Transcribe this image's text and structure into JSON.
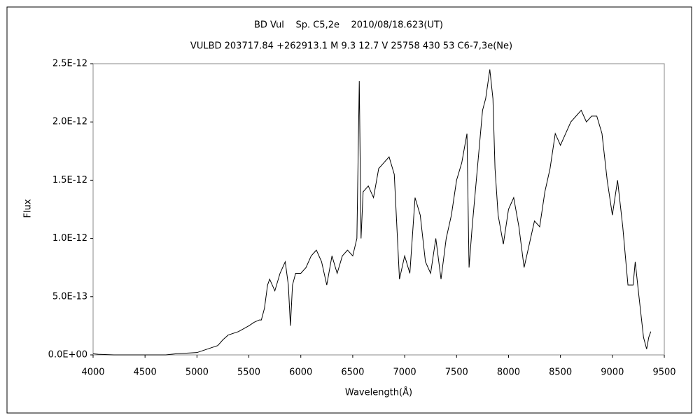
{
  "chart_data": {
    "type": "line",
    "title": "BD Vul    Sp. C5,2e    2010/08/18.623(UT)",
    "subtitle": "VULBD 203717.84 +262913.1 M 9.3 12.7 V 25758 430 53 C6-7,3e(Ne)",
    "x_label": "Wavelength(Å)",
    "y_label": "Flux",
    "color": "#000000",
    "x": [
      4000,
      4050,
      4200,
      4500,
      4700,
      4800,
      5000,
      5100,
      5200,
      5250,
      5300,
      5400,
      5500,
      5550,
      5600,
      5620,
      5650,
      5680,
      5700,
      5750,
      5800,
      5850,
      5880,
      5900,
      5920,
      5950,
      6000,
      6050,
      6100,
      6150,
      6200,
      6250,
      6300,
      6350,
      6400,
      6450,
      6500,
      6540,
      6563,
      6580,
      6600,
      6650,
      6700,
      6750,
      6800,
      6850,
      6900,
      6950,
      7000,
      7050,
      7100,
      7150,
      7200,
      7250,
      7300,
      7350,
      7400,
      7450,
      7500,
      7550,
      7580,
      7600,
      7620,
      7650,
      7700,
      7750,
      7780,
      7820,
      7850,
      7870,
      7900,
      7950,
      8000,
      8050,
      8100,
      8150,
      8200,
      8250,
      8300,
      8350,
      8400,
      8450,
      8500,
      8550,
      8600,
      8650,
      8700,
      8750,
      8800,
      8850,
      8900,
      8950,
      9000,
      9050,
      9100,
      9150,
      9200,
      9220,
      9250,
      9300,
      9330,
      9350,
      9370
    ],
    "values": [
      1e-14,
      5e-15,
      0,
      0,
      0,
      1e-14,
      2e-14,
      5e-14,
      8e-14,
      1.3e-13,
      1.7e-13,
      2e-13,
      2.5e-13,
      2.8e-13,
      3e-13,
      3e-13,
      4e-13,
      6e-13,
      6.5e-13,
      5.5e-13,
      7e-13,
      8e-13,
      6e-13,
      2.5e-13,
      6e-13,
      7e-13,
      7e-13,
      7.5e-13,
      8.5e-13,
      9e-13,
      8e-13,
      6e-13,
      8.5e-13,
      7e-13,
      8.5e-13,
      9e-13,
      8.5e-13,
      1e-12,
      2.35e-12,
      1e-12,
      1.4e-12,
      1.45e-12,
      1.35e-12,
      1.6e-12,
      1.65e-12,
      1.7e-12,
      1.55e-12,
      6.5e-13,
      8.5e-13,
      7e-13,
      1.35e-12,
      1.2e-12,
      8e-13,
      7e-13,
      1e-12,
      6.5e-13,
      1e-12,
      1.2e-12,
      1.5e-12,
      1.65e-12,
      1.8e-12,
      1.9e-12,
      7.5e-13,
      1.1e-12,
      1.6e-12,
      2.1e-12,
      2.2e-12,
      2.45e-12,
      2.2e-12,
      1.6e-12,
      1.2e-12,
      9.5e-13,
      1.25e-12,
      1.35e-12,
      1.1e-12,
      7.5e-13,
      9.5e-13,
      1.15e-12,
      1.1e-12,
      1.4e-12,
      1.6e-12,
      1.9e-12,
      1.8e-12,
      1.9e-12,
      2e-12,
      2.05e-12,
      2.1e-12,
      2e-12,
      2.05e-12,
      2.05e-12,
      1.9e-12,
      1.5e-12,
      1.2e-12,
      1.5e-12,
      1.1e-12,
      6e-13,
      6e-13,
      8e-13,
      5.5e-13,
      1.5e-13,
      5e-14,
      1.5e-13,
      2e-13
    ],
    "xlim": [
      4000,
      9500
    ],
    "xticks": [
      4000,
      4500,
      5000,
      5500,
      6000,
      6500,
      7000,
      7500,
      8000,
      8500,
      9000,
      9500
    ],
    "ylim": [
      0,
      2.5e-12
    ],
    "yticks": [
      {
        "value": 0,
        "label": "0.0E+00"
      },
      {
        "value": 5e-13,
        "label": "5.0E-13"
      },
      {
        "value": 1e-12,
        "label": "1.0E-12"
      },
      {
        "value": 1.5e-12,
        "label": "1.5E-12"
      },
      {
        "value": 2e-12,
        "label": "2.0E-12"
      },
      {
        "value": 2.5e-12,
        "label": "2.5E-12"
      }
    ],
    "grid": false
  }
}
